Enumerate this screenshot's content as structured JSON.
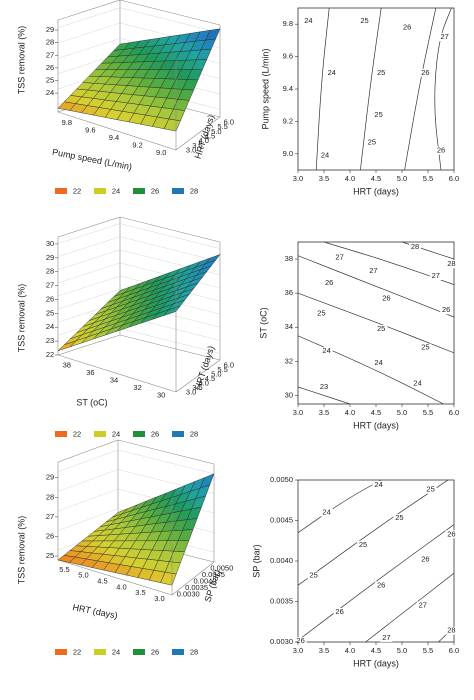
{
  "legend_colors": [
    "#ee6a20",
    "#cccc22",
    "#1f8f3a",
    "#1f77b4"
  ],
  "surface_palette": [
    "#f08020",
    "#d8d030",
    "#a8c83a",
    "#58ae3e",
    "#1f9a5a",
    "#20a5a0",
    "#2080c0",
    "#1a56a8"
  ],
  "chart_data": [
    {
      "type": "surface3d",
      "zlabel": "TSS removal (%)",
      "xlabel": "Pump speed (L/min)",
      "ylabel": "HRT (days)",
      "zticks": [
        "24",
        "25",
        "26",
        "27",
        "28",
        "29"
      ],
      "xticks": [
        "9.8",
        "9.6",
        "9.4",
        "9.2",
        "9.0"
      ],
      "yticks": [
        "3.0",
        "3.5",
        "4.0",
        "4.5",
        "5.0",
        "5.5",
        "6.0"
      ],
      "zlim": [
        22.5,
        29.8
      ],
      "corners": {
        "x_hi_y_lo": 24.0,
        "x_lo_y_lo": 22.8,
        "x_lo_y_hi": 26.3,
        "x_hi_y_hi": 29.5
      },
      "legend": [
        "22",
        "24",
        "26",
        "28"
      ]
    },
    {
      "type": "contour",
      "xlabel": "HRT (days)",
      "ylabel": "Pump speed (L/min)",
      "xticks": [
        "3.0",
        "3.5",
        "4.0",
        "4.5",
        "5.0",
        "5.5",
        "6.0"
      ],
      "yticks": [
        "9.0",
        "9.2",
        "9.4",
        "9.6",
        "9.8"
      ],
      "xlim": [
        3.0,
        6.0
      ],
      "ylim": [
        8.9,
        9.9
      ],
      "lines": [
        {
          "label": "24",
          "points": [
            [
              3.6,
              9.9
            ],
            [
              3.45,
              9.45
            ],
            [
              3.35,
              8.9
            ]
          ]
        },
        {
          "label": "25",
          "points": [
            [
              4.6,
              9.9
            ],
            [
              4.4,
              9.45
            ],
            [
              4.2,
              8.9
            ]
          ]
        },
        {
          "label": "26",
          "points": [
            [
              5.65,
              9.9
            ],
            [
              5.35,
              9.45
            ],
            [
              5.05,
              8.9
            ]
          ]
        },
        {
          "label": "27",
          "points": [
            [
              5.95,
              9.9
            ],
            [
              5.7,
              9.7
            ],
            [
              5.6,
              9.3
            ],
            [
              5.75,
              8.9
            ]
          ]
        }
      ],
      "line_labels": [
        {
          "text": "24",
          "x": 3.2,
          "y": 9.82
        },
        {
          "text": "25",
          "x": 4.28,
          "y": 9.82
        },
        {
          "text": "26",
          "x": 5.1,
          "y": 9.78
        },
        {
          "text": "27",
          "x": 5.82,
          "y": 9.72
        },
        {
          "text": "24",
          "x": 3.65,
          "y": 9.5
        },
        {
          "text": "25",
          "x": 4.6,
          "y": 9.5
        },
        {
          "text": "26",
          "x": 5.45,
          "y": 9.5
        },
        {
          "text": "25",
          "x": 4.55,
          "y": 9.24
        },
        {
          "text": "24",
          "x": 3.52,
          "y": 8.99
        },
        {
          "text": "25",
          "x": 4.42,
          "y": 9.07
        },
        {
          "text": "26",
          "x": 5.75,
          "y": 9.02
        }
      ]
    },
    {
      "type": "surface3d",
      "zlabel": "TSS removal (%)",
      "xlabel": "ST (oC)",
      "ylabel": "HRT (days)",
      "zticks": [
        "22",
        "23",
        "24",
        "25",
        "26",
        "27",
        "28",
        "29",
        "30"
      ],
      "xticks": [
        "38",
        "36",
        "34",
        "32",
        "30"
      ],
      "yticks": [
        "3.0",
        "3.5",
        "4.0",
        "4.5",
        "5.0",
        "5.5",
        "6.0"
      ],
      "zlim": [
        22,
        30.5
      ],
      "corners": {
        "x_hi_y_lo": 27.8,
        "x_lo_y_lo": 22.3,
        "x_lo_y_hi": 25.2,
        "x_hi_y_hi": 29.6
      },
      "legend": [
        "22",
        "24",
        "26",
        "28"
      ]
    },
    {
      "type": "contour",
      "xlabel": "HRT (days)",
      "ylabel": "ST (oC)",
      "xticks": [
        "3.0",
        "3.5",
        "4.0",
        "4.5",
        "5.0",
        "5.5",
        "6.0"
      ],
      "yticks": [
        "30",
        "32",
        "34",
        "36",
        "38"
      ],
      "xlim": [
        3.0,
        6.0
      ],
      "ylim": [
        29.5,
        39.0
      ],
      "lines": [
        {
          "label": "23",
          "points": [
            [
              3.0,
              30.5
            ],
            [
              3.5,
              30.0
            ],
            [
              4.0,
              29.5
            ]
          ]
        },
        {
          "label": "24",
          "points": [
            [
              3.0,
              33.5
            ],
            [
              4.5,
              31.5
            ],
            [
              5.8,
              29.5
            ]
          ]
        },
        {
          "label": "25",
          "points": [
            [
              3.0,
              36.0
            ],
            [
              4.5,
              34.3
            ],
            [
              6.0,
              32.5
            ]
          ]
        },
        {
          "label": "26",
          "points": [
            [
              3.0,
              38.2
            ],
            [
              4.5,
              36.4
            ],
            [
              6.0,
              34.6
            ]
          ]
        },
        {
          "label": "27",
          "points": [
            [
              3.5,
              39.0
            ],
            [
              4.8,
              37.8
            ],
            [
              6.0,
              36.5
            ]
          ]
        },
        {
          "label": "28",
          "points": [
            [
              5.0,
              39.0
            ],
            [
              5.5,
              38.5
            ],
            [
              6.0,
              38.0
            ]
          ]
        }
      ],
      "line_labels": [
        {
          "text": "28",
          "x": 5.25,
          "y": 38.7
        },
        {
          "text": "27",
          "x": 3.8,
          "y": 38.1
        },
        {
          "text": "27",
          "x": 5.65,
          "y": 37.0
        },
        {
          "text": "27",
          "x": 4.45,
          "y": 37.3
        },
        {
          "text": "28",
          "x": 5.95,
          "y": 37.7
        },
        {
          "text": "26",
          "x": 3.6,
          "y": 36.6
        },
        {
          "text": "26",
          "x": 4.7,
          "y": 35.7
        },
        {
          "text": "26",
          "x": 5.85,
          "y": 35.0
        },
        {
          "text": "25",
          "x": 3.45,
          "y": 34.8
        },
        {
          "text": "25",
          "x": 4.6,
          "y": 33.9
        },
        {
          "text": "25",
          "x": 5.45,
          "y": 32.8
        },
        {
          "text": "24",
          "x": 3.55,
          "y": 32.6
        },
        {
          "text": "24",
          "x": 4.55,
          "y": 31.9
        },
        {
          "text": "24",
          "x": 5.3,
          "y": 30.7
        },
        {
          "text": "23",
          "x": 3.5,
          "y": 30.5
        }
      ]
    },
    {
      "type": "surface3d",
      "zlabel": "TSS removal (%)",
      "xlabel": "HRT (days)",
      "ylabel": "SP (bar)",
      "zticks": [
        "25",
        "26",
        "27",
        "28",
        "29"
      ],
      "xticks": [
        "5.5",
        "5.0",
        "4.5",
        "4.0",
        "3.5",
        "3.0"
      ],
      "yticks": [
        "0.0030",
        "0.0035",
        "0.0040",
        "0.0045",
        "0.0050"
      ],
      "zlim": [
        24.8,
        29.8
      ],
      "corners": {
        "x_hi_y_lo": 25.3,
        "x_lo_y_lo": 24.8,
        "x_lo_y_hi": 26.1,
        "x_hi_y_hi": 29.3
      },
      "legend": [
        "22",
        "24",
        "26",
        "28"
      ]
    },
    {
      "type": "contour",
      "xlabel": "HRT (days)",
      "ylabel": "SP (bar)",
      "xticks": [
        "3.0",
        "3.5",
        "4.0",
        "4.5",
        "5.0",
        "5.5",
        "6.0"
      ],
      "yticks": [
        "0.0030",
        "0.0035",
        "0.0040",
        "0.0045",
        "0.0050"
      ],
      "xlim": [
        3.0,
        6.0
      ],
      "ylim": [
        0.003,
        0.005
      ],
      "lines": [
        {
          "label": "24",
          "points": [
            [
              3.0,
              0.00435
            ],
            [
              3.9,
              0.00475
            ],
            [
              4.6,
              0.005
            ]
          ]
        },
        {
          "label": "25",
          "points": [
            [
              3.0,
              0.0037
            ],
            [
              4.5,
              0.0044
            ],
            [
              6.0,
              0.00505
            ]
          ]
        },
        {
          "label": "26",
          "points": [
            [
              3.0,
              0.00302
            ],
            [
              4.5,
              0.00375
            ],
            [
              6.0,
              0.00445
            ]
          ]
        },
        {
          "label": "27",
          "points": [
            [
              4.3,
              0.003
            ],
            [
              5.2,
              0.00345
            ],
            [
              6.0,
              0.00385
            ]
          ]
        },
        {
          "label": "28",
          "points": [
            [
              5.7,
              0.003
            ],
            [
              6.0,
              0.00318
            ]
          ]
        }
      ],
      "line_labels": [
        {
          "text": "24",
          "x": 4.55,
          "y": 0.00494
        },
        {
          "text": "25",
          "x": 5.55,
          "y": 0.00488
        },
        {
          "text": "24",
          "x": 3.55,
          "y": 0.0046
        },
        {
          "text": "25",
          "x": 4.95,
          "y": 0.00453
        },
        {
          "text": "26",
          "x": 5.95,
          "y": 0.00433
        },
        {
          "text": "25",
          "x": 4.25,
          "y": 0.0042
        },
        {
          "text": "26",
          "x": 5.45,
          "y": 0.00402
        },
        {
          "text": "25",
          "x": 3.3,
          "y": 0.00382
        },
        {
          "text": "26",
          "x": 4.6,
          "y": 0.0037
        },
        {
          "text": "26",
          "x": 3.8,
          "y": 0.00337
        },
        {
          "text": "27",
          "x": 5.4,
          "y": 0.00345
        },
        {
          "text": "27",
          "x": 4.7,
          "y": 0.00305
        },
        {
          "text": "28",
          "x": 5.95,
          "y": 0.00314
        },
        {
          "text": "26",
          "x": 3.05,
          "y": 0.00301
        }
      ]
    }
  ]
}
